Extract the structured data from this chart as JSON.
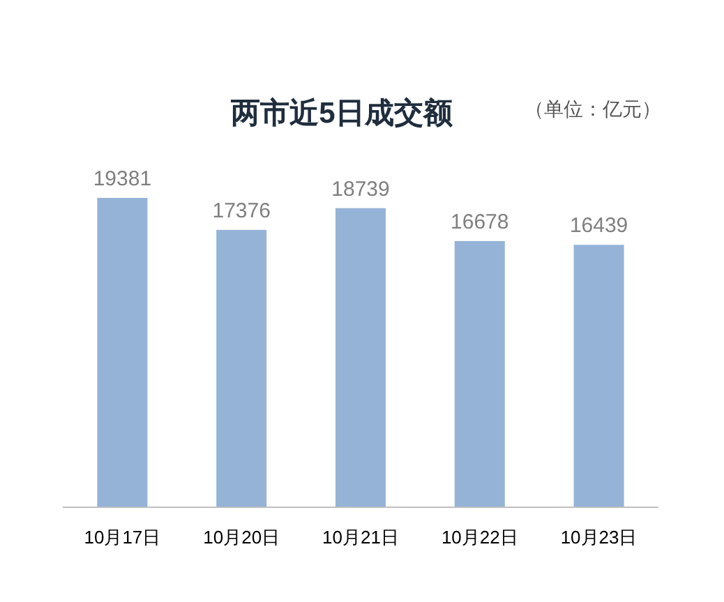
{
  "chart_data": {
    "type": "bar",
    "title": "两市近5日成交额",
    "annotations": [
      "（单位：亿元）"
    ],
    "categories": [
      "10月17日",
      "10月20日",
      "10月21日",
      "10月22日",
      "10月23日"
    ],
    "values": [
      19381,
      17376,
      18739,
      16678,
      16439
    ],
    "color": "#95b3d7",
    "data_labels": true
  }
}
